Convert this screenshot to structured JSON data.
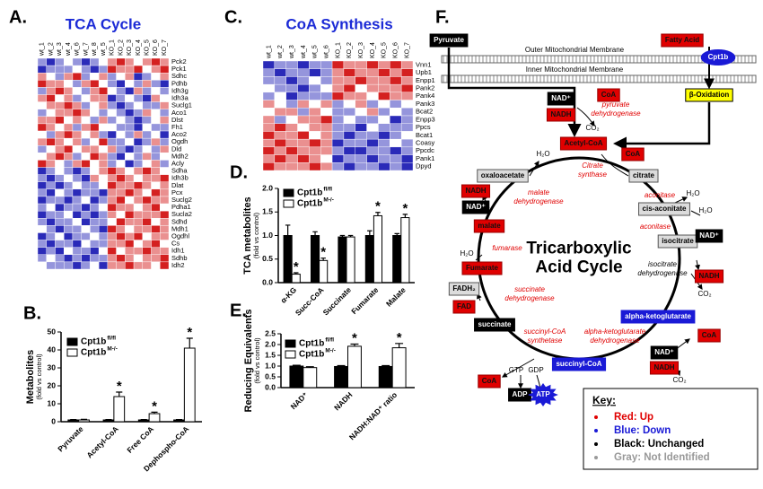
{
  "chart_data": [
    {
      "type": "heatmap",
      "panel": "A.",
      "title": "TCA Cycle",
      "columns": [
        "wt_1",
        "wt_2",
        "wt_3",
        "wt_4",
        "wt_6",
        "wt_7",
        "wt_8",
        "wt_5",
        "KO_1",
        "KO_2",
        "KO_3",
        "KO_4",
        "KO_5",
        "KO_6",
        "KO_7"
      ],
      "rows": [
        "Pck2",
        "Pck1",
        "Sdhc",
        "Pdhb",
        "Idh3g",
        "Idh3a",
        "Suclg1",
        "Aco1",
        "Dlst",
        "Fh1",
        "Aco2",
        "Ogdh",
        "Dld",
        "Mdh2",
        "Acly",
        "Sdha",
        "Idh3b",
        "Dlat",
        "Pcx",
        "Suclg2",
        "Pdha1",
        "Sucla2",
        "Sdhd",
        "Mdh1",
        "Ogdhl",
        "Cs",
        "Idh1",
        "Sdhb",
        "Idh2"
      ],
      "values": [
        [
          -1,
          -2,
          -1,
          0,
          -1,
          -2,
          -1,
          0,
          1,
          2,
          1,
          0,
          1,
          2,
          1
        ],
        [
          -2,
          -1,
          -1,
          -1,
          0,
          -1,
          -2,
          -1,
          2,
          1,
          1,
          2,
          0,
          1,
          2
        ],
        [
          1,
          0,
          -1,
          1,
          2,
          -1,
          0,
          1,
          -1,
          0,
          1,
          -2,
          -1,
          0,
          1
        ],
        [
          2,
          1,
          1,
          0,
          -1,
          1,
          2,
          0,
          -1,
          -2,
          0,
          -1,
          1,
          -1,
          -2
        ],
        [
          -1,
          1,
          2,
          1,
          0,
          -1,
          1,
          2,
          0,
          -1,
          -2,
          1,
          -1,
          0,
          -1
        ],
        [
          1,
          2,
          0,
          1,
          -1,
          0,
          1,
          1,
          -2,
          -1,
          0,
          -1,
          -2,
          1,
          0
        ],
        [
          0,
          1,
          1,
          2,
          1,
          -1,
          0,
          1,
          -1,
          -2,
          -1,
          0,
          -1,
          -1,
          1
        ],
        [
          -1,
          0,
          1,
          1,
          2,
          1,
          0,
          -1,
          0,
          -1,
          -2,
          -1,
          1,
          0,
          -1
        ],
        [
          1,
          1,
          2,
          0,
          1,
          0,
          -1,
          1,
          -1,
          0,
          -1,
          -2,
          -1,
          0,
          1
        ],
        [
          2,
          1,
          0,
          1,
          -1,
          1,
          2,
          0,
          0,
          -1,
          -1,
          -2,
          0,
          -1,
          -1
        ],
        [
          0,
          -1,
          1,
          2,
          1,
          0,
          1,
          -1,
          -2,
          0,
          -1,
          1,
          -1,
          0,
          -2
        ],
        [
          1,
          2,
          1,
          0,
          1,
          -1,
          0,
          2,
          -1,
          -1,
          0,
          -2,
          -1,
          1,
          -1
        ],
        [
          -1,
          0,
          1,
          2,
          0,
          1,
          1,
          0,
          1,
          -1,
          -2,
          -1,
          0,
          -1,
          1
        ],
        [
          0,
          1,
          2,
          1,
          -1,
          0,
          2,
          1,
          -1,
          -2,
          0,
          -1,
          1,
          -1,
          0
        ],
        [
          2,
          1,
          0,
          -1,
          1,
          2,
          0,
          1,
          -1,
          0,
          -2,
          -1,
          0,
          1,
          -1
        ],
        [
          -2,
          -1,
          0,
          -1,
          -2,
          -1,
          0,
          1,
          2,
          1,
          0,
          1,
          2,
          1,
          0
        ],
        [
          -1,
          -2,
          -1,
          0,
          -1,
          -2,
          1,
          0,
          1,
          2,
          1,
          0,
          1,
          1,
          2
        ],
        [
          -2,
          -1,
          -2,
          -1,
          0,
          -1,
          -1,
          0,
          2,
          1,
          1,
          2,
          1,
          0,
          1
        ],
        [
          -1,
          -2,
          0,
          -1,
          -2,
          -1,
          -1,
          -2,
          1,
          1,
          2,
          1,
          0,
          2,
          1
        ],
        [
          -2,
          -1,
          -1,
          -2,
          -1,
          0,
          -2,
          -1,
          1,
          2,
          0,
          1,
          2,
          1,
          1
        ],
        [
          -1,
          0,
          -2,
          -1,
          -1,
          -2,
          -1,
          0,
          2,
          1,
          1,
          0,
          1,
          2,
          0
        ],
        [
          -2,
          -1,
          -1,
          0,
          -2,
          -1,
          -2,
          -1,
          1,
          0,
          2,
          1,
          1,
          1,
          2
        ],
        [
          -1,
          -2,
          -1,
          -1,
          0,
          -2,
          -1,
          -1,
          0,
          2,
          1,
          1,
          2,
          0,
          1
        ],
        [
          0,
          -1,
          -2,
          -1,
          -1,
          0,
          -1,
          -2,
          2,
          1,
          0,
          1,
          1,
          2,
          1
        ],
        [
          -2,
          -1,
          0,
          -2,
          -1,
          -1,
          0,
          -1,
          1,
          2,
          1,
          2,
          0,
          1,
          1
        ],
        [
          -1,
          -2,
          -1,
          -1,
          -2,
          0,
          -1,
          -1,
          1,
          1,
          2,
          0,
          1,
          2,
          0
        ],
        [
          -2,
          -1,
          -2,
          0,
          -1,
          -1,
          -2,
          0,
          2,
          0,
          1,
          1,
          2,
          1,
          1
        ],
        [
          -1,
          0,
          -1,
          -2,
          -1,
          -2,
          -1,
          -1,
          1,
          2,
          1,
          0,
          1,
          1,
          2
        ],
        [
          0,
          -1,
          -1,
          -1,
          -2,
          -1,
          0,
          -2,
          1,
          1,
          2,
          1,
          1,
          0,
          2
        ]
      ],
      "zlim": [
        -2,
        2
      ],
      "colorscale": [
        "#2a2ab8",
        "#ffffff",
        "#d42020"
      ]
    },
    {
      "type": "heatmap",
      "panel": "C.",
      "title": "CoA Synthesis",
      "columns": [
        "wt_1",
        "wt_2",
        "wt_3",
        "wt_4",
        "wt_5",
        "wt_6",
        "KO_1",
        "KO_2",
        "KO_3",
        "KO_4",
        "KO_5",
        "KO_6",
        "KO_7"
      ],
      "rows": [
        "Vnn1",
        "Upb1",
        "Enpp1",
        "Pank2",
        "Pank4",
        "Pank3",
        "Bcat2",
        "Enpp3",
        "Ppcs",
        "Bcat1",
        "Coasy",
        "Ppcdc",
        "Pank1",
        "Dpyd"
      ],
      "values": [
        [
          -2,
          -1,
          -1,
          -2,
          -1,
          -1,
          2,
          1,
          1,
          2,
          1,
          2,
          1
        ],
        [
          -1,
          -2,
          -1,
          -1,
          -2,
          -1,
          1,
          2,
          1,
          1,
          2,
          1,
          2
        ],
        [
          -1,
          -1,
          -2,
          -1,
          0,
          -1,
          1,
          1,
          2,
          1,
          1,
          2,
          1
        ],
        [
          0,
          -1,
          -1,
          -2,
          -1,
          0,
          1,
          2,
          0,
          1,
          1,
          1,
          2
        ],
        [
          -1,
          0,
          -2,
          -1,
          -1,
          -1,
          2,
          1,
          1,
          0,
          2,
          1,
          1
        ],
        [
          1,
          0,
          -1,
          1,
          0,
          1,
          -1,
          0,
          1,
          -1,
          0,
          -1,
          0
        ],
        [
          0,
          1,
          1,
          -1,
          1,
          0,
          -1,
          -1,
          0,
          1,
          -1,
          0,
          -1
        ],
        [
          1,
          -1,
          0,
          1,
          1,
          2,
          -1,
          0,
          -1,
          -1,
          0,
          -2,
          -1
        ],
        [
          1,
          2,
          1,
          0,
          1,
          1,
          -1,
          -1,
          -2,
          0,
          -1,
          -1,
          -1
        ],
        [
          2,
          1,
          1,
          2,
          0,
          1,
          -1,
          -2,
          -1,
          -1,
          -2,
          -1,
          0
        ],
        [
          1,
          2,
          1,
          1,
          2,
          1,
          -2,
          -1,
          -1,
          -2,
          -1,
          0,
          -1
        ],
        [
          2,
          1,
          2,
          1,
          1,
          1,
          -1,
          -2,
          -2,
          -1,
          -1,
          -2,
          -1
        ],
        [
          1,
          2,
          1,
          2,
          1,
          0,
          -2,
          -1,
          -1,
          -2,
          -1,
          -1,
          -2
        ],
        [
          2,
          1,
          1,
          1,
          2,
          1,
          -1,
          -2,
          -1,
          -1,
          -2,
          -1,
          -2
        ]
      ],
      "zlim": [
        -2,
        2
      ],
      "colorscale": [
        "#2a2ab8",
        "#ffffff",
        "#d42020"
      ]
    },
    {
      "type": "bar",
      "panel": "B.",
      "ylabel": "Metabolites",
      "ysublabel": "(fold vs control)",
      "categories": [
        "Pyruvate",
        "Acetyl-CoA",
        "Free CoA",
        "Dephospho-CoA"
      ],
      "series": [
        {
          "name": "Cpt1b",
          "superscript": "fl/fl",
          "color": "#000000",
          "values": [
            1,
            1,
            1,
            1
          ],
          "errors": [
            0.2,
            0.2,
            0.2,
            0.2
          ]
        },
        {
          "name": "Cpt1b",
          "superscript": "M-/-",
          "color": "#ffffff",
          "values": [
            1,
            14,
            4.5,
            41
          ],
          "errors": [
            0.3,
            2.5,
            0.8,
            5.5
          ],
          "significance": [
            null,
            "*",
            "*",
            "*"
          ]
        }
      ],
      "ylim": [
        0,
        50
      ],
      "yticks": [
        0,
        10,
        20,
        30,
        40,
        50
      ]
    },
    {
      "type": "bar",
      "panel": "D.",
      "ylabel": "TCA metabolites",
      "ysublabel": "(fold vs control)",
      "categories": [
        "α-KG",
        "Succ-CoA",
        "Succinate",
        "Fumarate",
        "Malate"
      ],
      "series": [
        {
          "name": "Cpt1b",
          "superscript": "fl/fl",
          "color": "#000000",
          "values": [
            1.0,
            1.0,
            0.97,
            1.0,
            1.0
          ],
          "errors": [
            0.22,
            0.08,
            0.03,
            0.1,
            0.04
          ]
        },
        {
          "name": "Cpt1b",
          "superscript": "M-/-",
          "color": "#ffffff",
          "values": [
            0.18,
            0.47,
            0.97,
            1.42,
            1.38
          ],
          "errors": [
            0.03,
            0.05,
            0.03,
            0.07,
            0.07
          ],
          "significance": [
            "*",
            "*",
            null,
            "*",
            "*"
          ]
        }
      ],
      "ylim": [
        0,
        2
      ],
      "yticks": [
        {
          "value": 0,
          "label": "0.0"
        },
        {
          "value": 0.5,
          "label": "0.5"
        },
        {
          "value": 1,
          "label": "1.0"
        },
        {
          "value": 1.5,
          "label": "1.5"
        },
        {
          "value": 2,
          "label": "2.0"
        }
      ]
    },
    {
      "type": "bar",
      "panel": "E.",
      "ylabel": "Reducing Equivalents",
      "ysublabel": "(fold vs control)",
      "categories": [
        "NAD⁺",
        "NADH",
        "NADH:NAD⁺ ratio"
      ],
      "series": [
        {
          "name": "Cpt1b",
          "superscript": "fl/fl",
          "color": "#000000",
          "values": [
            1.0,
            0.98,
            0.98
          ],
          "errors": [
            0.04,
            0.04,
            0.04
          ]
        },
        {
          "name": "Cpt1b",
          "superscript": "M-/-",
          "color": "#ffffff",
          "values": [
            0.93,
            1.92,
            1.85
          ],
          "errors": [
            0.04,
            0.1,
            0.2
          ],
          "significance": [
            null,
            "*",
            "*"
          ]
        }
      ],
      "ylim": [
        0,
        2.5
      ],
      "yticks": [
        {
          "value": 0,
          "label": "0.0"
        },
        {
          "value": 0.5,
          "label": "0.5"
        },
        {
          "value": 1,
          "label": "1.0"
        },
        {
          "value": 1.5,
          "label": "1.5"
        },
        {
          "value": 2,
          "label": "2.0"
        },
        {
          "value": 2.5,
          "label": "2.5"
        }
      ]
    }
  ],
  "diagram": {
    "panel": "F.",
    "items": [
      {
        "label": "Pyruvate",
        "style": "black"
      },
      {
        "label": "Fatty Acid",
        "style": "red"
      },
      {
        "label": "Outer Mitochondrial Membrane",
        "style": "plain"
      },
      {
        "label": "Cpt1b",
        "style": "ellipse"
      },
      {
        "label": "Inner Mitochondrial Membrane",
        "style": "plain"
      },
      {
        "label": "β-Oxidation",
        "style": "yellow"
      },
      {
        "label": "NAD⁺",
        "style": "black"
      },
      {
        "label": "NADH",
        "style": "red"
      },
      {
        "label": "CoA",
        "style": "red"
      },
      {
        "label": "CO₂",
        "style": "plain"
      },
      {
        "lines": [
          "pyruvate",
          "dehydrogenase"
        ],
        "style": "enzyme"
      },
      {
        "label": "Acetyl-CoA",
        "style": "red"
      },
      {
        "label": "CoA",
        "style": "red"
      },
      {
        "label": "H₂O",
        "style": "plain"
      },
      {
        "lines": [
          "Citrate",
          "synthase"
        ],
        "style": "enzyme"
      },
      {
        "label": "oxaloacetate",
        "style": "gray"
      },
      {
        "label": "citrate",
        "style": "gray"
      },
      {
        "label": "NADH",
        "style": "red"
      },
      {
        "label": "NAD⁺",
        "style": "black"
      },
      {
        "lines": [
          "malate",
          "dehydrogenase"
        ],
        "style": "enzyme"
      },
      {
        "label": "aconitase",
        "style": "enzyme"
      },
      {
        "label": "H₂O",
        "style": "plain"
      },
      {
        "label": "cis-aconitate",
        "style": "gray"
      },
      {
        "label": "H₂O",
        "style": "plain"
      },
      {
        "label": "malate",
        "style": "red"
      },
      {
        "label": "aconitase",
        "style": "enzyme"
      },
      {
        "label": "isocitrate",
        "style": "gray"
      },
      {
        "label": "H₂O",
        "style": "plain"
      },
      {
        "label": "fumarase",
        "style": "enzyme"
      },
      {
        "lines": [
          "Tricarboxylic",
          "Acid Cycle"
        ],
        "style": "big"
      },
      {
        "label": "Fumarate",
        "style": "red"
      },
      {
        "label": "NAD⁺",
        "style": "black"
      },
      {
        "label": "NADH",
        "style": "red"
      },
      {
        "lines": [
          "isocitrate",
          "dehydrogenase"
        ],
        "style": "note"
      },
      {
        "label": "FADH₂",
        "style": "gray"
      },
      {
        "label": "FAD",
        "style": "red"
      },
      {
        "lines": [
          "succinate",
          "dehydrogenase"
        ],
        "style": "enzyme"
      },
      {
        "label": "CO₂",
        "style": "plain"
      },
      {
        "label": "alpha-ketoglutarate",
        "style": "blue"
      },
      {
        "label": "succinate",
        "style": "black"
      },
      {
        "lines": [
          "succinyl-CoA",
          "synthetase"
        ],
        "style": "enzyme"
      },
      {
        "lines": [
          "alpha-ketoglutarate",
          "dehydrogenase"
        ],
        "style": "enzyme"
      },
      {
        "label": "CoA",
        "style": "red"
      },
      {
        "label": "NAD⁺",
        "style": "black"
      },
      {
        "label": "NADH",
        "style": "red"
      },
      {
        "label": "CO₂",
        "style": "plain"
      },
      {
        "label": "succinyl-CoA",
        "style": "blue"
      },
      {
        "label": "GTP",
        "style": "plain"
      },
      {
        "label": "GDP",
        "style": "plain"
      },
      {
        "label": "CoA",
        "style": "red"
      },
      {
        "label": "ADP",
        "style": "black"
      },
      {
        "label": "ATP",
        "style": "star"
      }
    ],
    "key": {
      "title": "Key:",
      "entries": [
        {
          "label": "Red: Up",
          "color": "#e00000"
        },
        {
          "label": "Blue: Down",
          "color": "#1a1ad6"
        },
        {
          "label": "Black: Unchanged",
          "color": "#000000"
        },
        {
          "label": "Gray: Not Identified",
          "color": "#999999"
        }
      ]
    }
  }
}
